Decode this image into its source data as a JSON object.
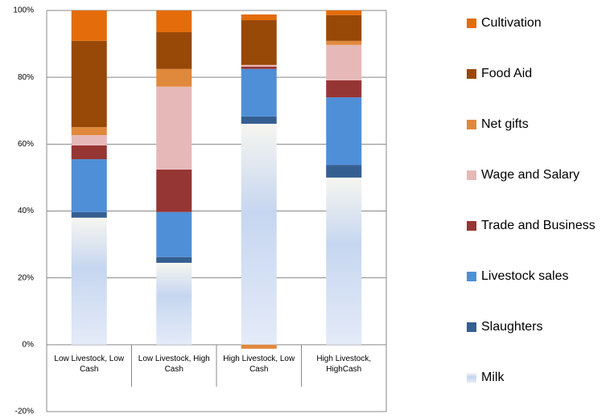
{
  "chart_data": {
    "type": "stacked_bar",
    "categories": [
      "Low Livestock, Low Cash",
      "Low Livestock, High Cash",
      "High Livestock, Low Cash",
      "High Livestock, HighCash"
    ],
    "series": [
      {
        "name": "Milk",
        "color": "#c6d6f0",
        "values": [
          38.0,
          24.5,
          66.1,
          50.0
        ]
      },
      {
        "name": "Slaughters",
        "color": "#365f91",
        "values": [
          1.7,
          1.7,
          2.2,
          3.8
        ]
      },
      {
        "name": "Livestock sales",
        "color": "#4f8fd8",
        "values": [
          15.8,
          13.5,
          14.2,
          20.2
        ]
      },
      {
        "name": "Trade and Business",
        "color": "#963634",
        "values": [
          4.1,
          12.7,
          0.7,
          5.1
        ]
      },
      {
        "name": "Wage and Salary",
        "color": "#e6b9b8",
        "values": [
          3.1,
          24.8,
          0.5,
          10.6
        ]
      },
      {
        "name": "Net gifts",
        "color": "#e0883c",
        "values": [
          2.4,
          5.3,
          -1.2,
          1.2
        ]
      },
      {
        "name": "Food Aid",
        "color": "#984807",
        "values": [
          25.8,
          11.0,
          13.4,
          7.7
        ]
      },
      {
        "name": "Cultivation",
        "color": "#e46c0a",
        "values": [
          9.1,
          6.5,
          1.7,
          1.4
        ]
      }
    ],
    "ylim": [
      -20,
      100
    ],
    "yticks": [
      {
        "value": -20,
        "label": "-20%"
      },
      {
        "value": 0,
        "label": "0%"
      },
      {
        "value": 20,
        "label": "20%"
      },
      {
        "value": 40,
        "label": "40%"
      },
      {
        "value": 60,
        "label": "60%"
      },
      {
        "value": 80,
        "label": "80%"
      },
      {
        "value": 100,
        "label": "100%"
      }
    ],
    "grid": true,
    "legend": "right"
  }
}
